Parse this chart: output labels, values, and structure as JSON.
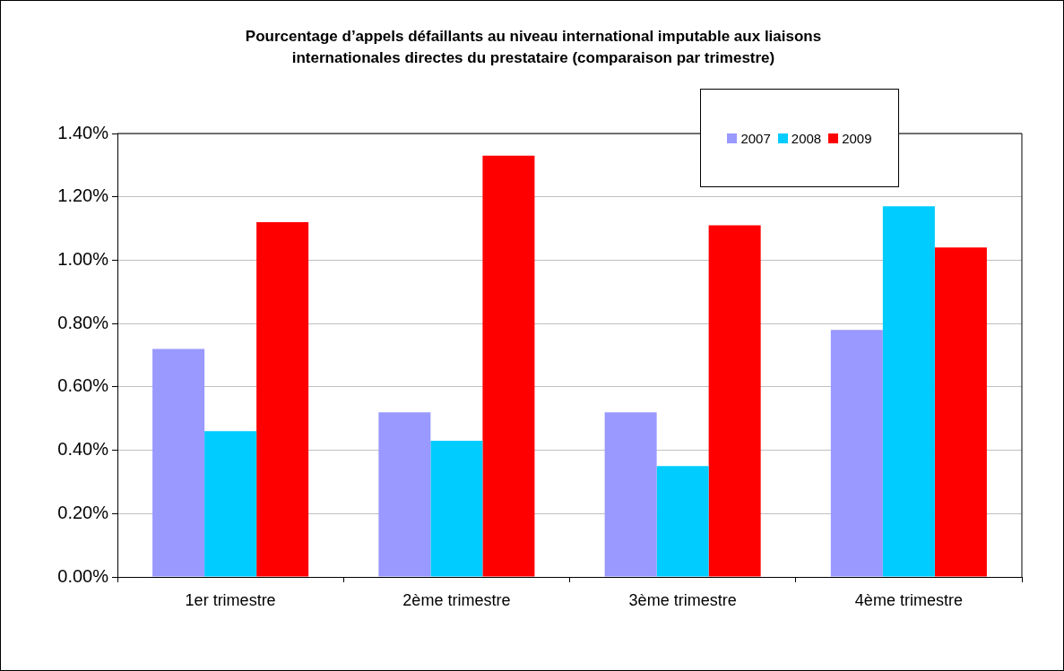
{
  "chart_data": {
    "type": "bar",
    "title": "Pourcentage d’appels défaillants au niveau international imputable aux liaisons internationales directes du prestataire (comparaison par trimestre)",
    "categories": [
      "1er trimestre",
      "2ème trimestre",
      "3ème trimestre",
      "4ème trimestre"
    ],
    "series": [
      {
        "name": "2007",
        "color": "#9999ff",
        "values": [
          0.72,
          0.52,
          0.52,
          0.78
        ]
      },
      {
        "name": "2008",
        "color": "#00ccff",
        "values": [
          0.46,
          0.43,
          0.35,
          1.17
        ]
      },
      {
        "name": "2009",
        "color": "#ff0000",
        "values": [
          1.12,
          1.33,
          1.11,
          1.04
        ]
      }
    ],
    "ylim": [
      0,
      1.4
    ],
    "yticks": [
      {
        "value": 0,
        "label": "0.00%"
      },
      {
        "value": 0.2,
        "label": "0.20%"
      },
      {
        "value": 0.4,
        "label": "0.40%"
      },
      {
        "value": 0.6,
        "label": "0.60%"
      },
      {
        "value": 0.8,
        "label": "0.80%"
      },
      {
        "value": 1,
        "label": "1.00%"
      },
      {
        "value": 1.2,
        "label": "1.20%"
      },
      {
        "value": 1.4,
        "label": "1.40%"
      }
    ],
    "grid": "y",
    "legend": "top right"
  }
}
